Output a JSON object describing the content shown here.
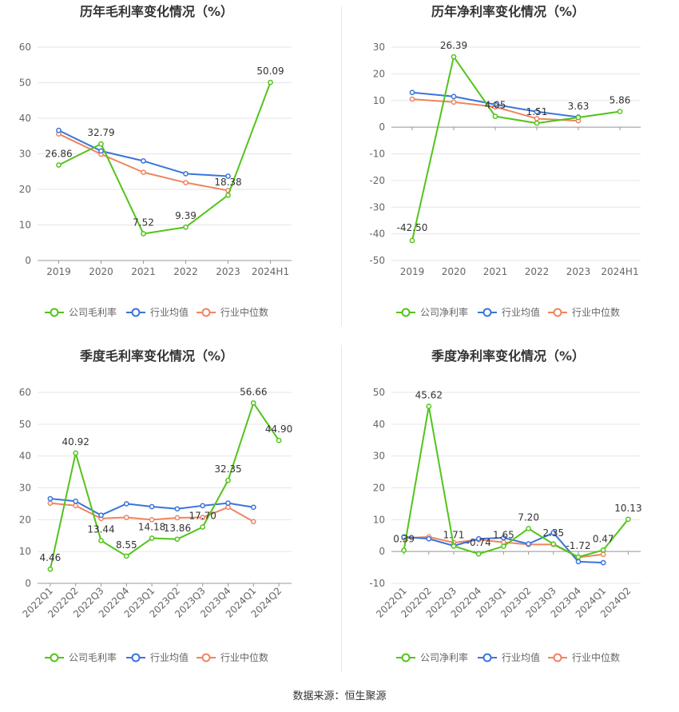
{
  "source_text": "数据来源：恒生聚源",
  "legend_names": {
    "company_gross": "公司毛利率",
    "company_net": "公司净利率",
    "industry_avg": "行业均值",
    "industry_median": "行业中位数"
  },
  "colors": {
    "company": "#52c41a",
    "industry_avg": "#3a74d9",
    "industry_median": "#f0845f"
  },
  "chart_data": [
    {
      "type": "line",
      "title": "历年毛利率变化情况（%）",
      "categories": [
        "2019",
        "2020",
        "2021",
        "2022",
        "2023",
        "2024H1"
      ],
      "ylim": [
        0,
        60
      ],
      "yticks": [
        0,
        10,
        20,
        30,
        40,
        50,
        60
      ],
      "grid": true,
      "legend_position": "bottom",
      "series": [
        {
          "name": "公司毛利率",
          "values": [
            26.86,
            32.79,
            7.52,
            9.39,
            18.38,
            50.09
          ],
          "labels": [
            "26.86",
            "32.79",
            "7.52",
            "9.39",
            "18.38",
            "50.09"
          ]
        },
        {
          "name": "行业均值",
          "values": [
            36.6,
            30.8,
            28.0,
            24.4,
            23.7,
            null
          ]
        },
        {
          "name": "行业中位数",
          "values": [
            35.6,
            29.9,
            24.8,
            21.9,
            19.7,
            null
          ]
        }
      ]
    },
    {
      "type": "line",
      "title": "历年净利率变化情况（%）",
      "categories": [
        "2019",
        "2020",
        "2021",
        "2022",
        "2023",
        "2024H1"
      ],
      "ylim": [
        -50,
        30
      ],
      "yticks": [
        -50,
        -40,
        -30,
        -20,
        -10,
        0,
        10,
        20,
        30
      ],
      "grid": true,
      "legend_position": "bottom",
      "series": [
        {
          "name": "公司净利率",
          "values": [
            -42.5,
            26.39,
            4.05,
            1.51,
            3.63,
            5.86
          ],
          "labels": [
            "-42.50",
            "26.39",
            "4.05",
            "1.51",
            "3.63",
            "5.86"
          ]
        },
        {
          "name": "行业均值",
          "values": [
            13.0,
            11.5,
            8.5,
            5.8,
            3.8,
            null
          ]
        },
        {
          "name": "行业中位数",
          "values": [
            10.5,
            9.4,
            7.6,
            3.2,
            2.4,
            null
          ]
        }
      ]
    },
    {
      "type": "line",
      "title": "季度毛利率变化情况（%）",
      "categories": [
        "2022Q1",
        "2022Q2",
        "2022Q3",
        "2022Q4",
        "2023Q1",
        "2023Q2",
        "2023Q3",
        "2023Q4",
        "2024Q1",
        "2024Q2"
      ],
      "ylim": [
        0,
        60
      ],
      "yticks": [
        0,
        10,
        20,
        30,
        40,
        50,
        60
      ],
      "grid": true,
      "legend_position": "bottom",
      "series": [
        {
          "name": "公司毛利率",
          "values": [
            4.46,
            40.92,
            13.44,
            8.55,
            14.18,
            13.86,
            17.7,
            32.35,
            56.66,
            44.9
          ],
          "labels": [
            "4.46",
            "40.92",
            "13.44",
            "8.55",
            "14.18",
            "13.86",
            "17.70",
            "32.35",
            "56.66",
            "44.90"
          ]
        },
        {
          "name": "行业均值",
          "values": [
            26.6,
            25.8,
            21.4,
            25.0,
            24.1,
            23.4,
            24.4,
            25.2,
            23.9,
            null
          ]
        },
        {
          "name": "行业中位数",
          "values": [
            25.2,
            24.4,
            20.4,
            20.7,
            20.0,
            20.6,
            20.7,
            23.9,
            19.4,
            null
          ]
        }
      ]
    },
    {
      "type": "line",
      "title": "季度净利率变化情况（%）",
      "categories": [
        "2022Q1",
        "2022Q2",
        "2022Q3",
        "2022Q4",
        "2023Q1",
        "2023Q2",
        "2023Q3",
        "2023Q4",
        "2024Q1",
        "2024Q2"
      ],
      "ylim": [
        -10,
        50
      ],
      "yticks": [
        -10,
        0,
        10,
        20,
        30,
        40,
        50
      ],
      "grid": true,
      "legend_position": "bottom",
      "series": [
        {
          "name": "公司净利率",
          "values": [
            0.39,
            45.62,
            1.71,
            -0.74,
            1.65,
            7.2,
            2.35,
            -1.72,
            0.47,
            10.13
          ],
          "labels": [
            "0.39",
            "45.62",
            "1.71",
            "-0.74",
            "1.65",
            "7.20",
            "2.35",
            "-1.72",
            "0.47",
            "10.13"
          ]
        },
        {
          "name": "行业均值",
          "values": [
            4.6,
            4.0,
            1.8,
            4.0,
            4.3,
            2.4,
            5.9,
            -3.2,
            -3.5,
            null
          ]
        },
        {
          "name": "行业中位数",
          "values": [
            4.2,
            4.6,
            2.8,
            3.7,
            2.9,
            2.2,
            2.2,
            -1.8,
            -0.9,
            null
          ]
        }
      ]
    }
  ]
}
